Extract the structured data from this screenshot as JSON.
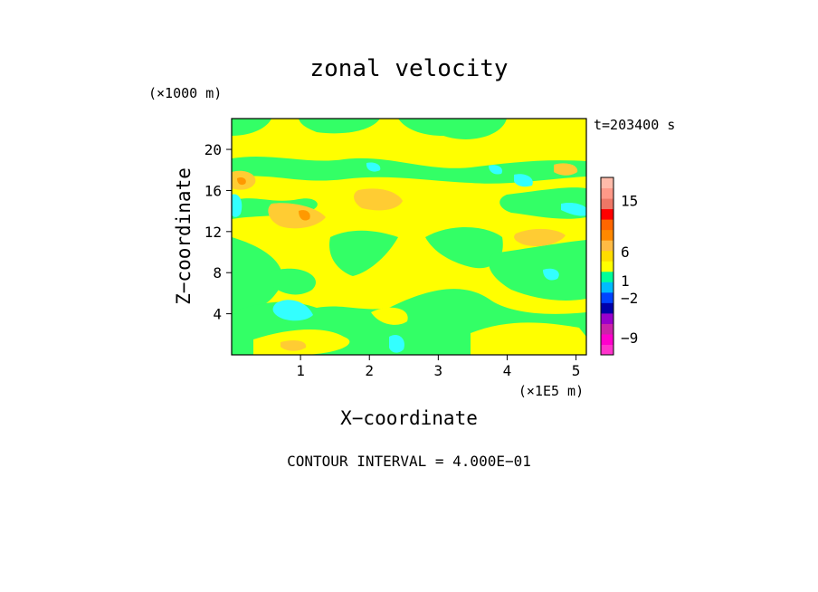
{
  "chart_data": {
    "type": "heatmap",
    "title": "zonal velocity",
    "time_label": "t=203400 s",
    "xlabel": "X−coordinate",
    "ylabel": "Z−coordinate",
    "x_unit": "(×1E5 m)",
    "y_unit": "(×1000 m)",
    "xlim": [
      0,
      5.15
    ],
    "ylim": [
      0,
      23
    ],
    "x_ticks": [
      1,
      2,
      3,
      4,
      5
    ],
    "y_ticks": [
      4,
      8,
      12,
      16,
      20
    ],
    "contour_note": "CONTOUR INTERVAL = 4.000E−01",
    "colorbar": {
      "levels": [
        {
          "color": "#ff33cc"
        },
        {
          "color": "#ff00cc"
        },
        {
          "color": "#cc22aa"
        },
        {
          "color": "#9900cc"
        },
        {
          "color": "#0000aa"
        },
        {
          "color": "#0044ff"
        },
        {
          "color": "#00bbff"
        },
        {
          "color": "#00ff99"
        },
        {
          "color": "#ffff00"
        },
        {
          "color": "#ffdd00"
        },
        {
          "color": "#ffbb44"
        },
        {
          "color": "#ff8800"
        },
        {
          "color": "#ff6600"
        },
        {
          "color": "#ff0000"
        },
        {
          "color": "#ee7766"
        },
        {
          "color": "#ff9988"
        },
        {
          "color": "#ffbbaa"
        }
      ],
      "tick_labels": [
        {
          "text": "15",
          "value": 15
        },
        {
          "text": "6",
          "value": 6
        },
        {
          "text": "1",
          "value": 1
        },
        {
          "text": "−2",
          "value": -2
        },
        {
          "text": "−9",
          "value": -9
        }
      ]
    },
    "field_colors": {
      "bright_green": "#33ff66",
      "yellow": "#ffff00",
      "orange_light": "#ffcc33",
      "orange": "#ff9900",
      "cyan": "#33ffff"
    }
  }
}
